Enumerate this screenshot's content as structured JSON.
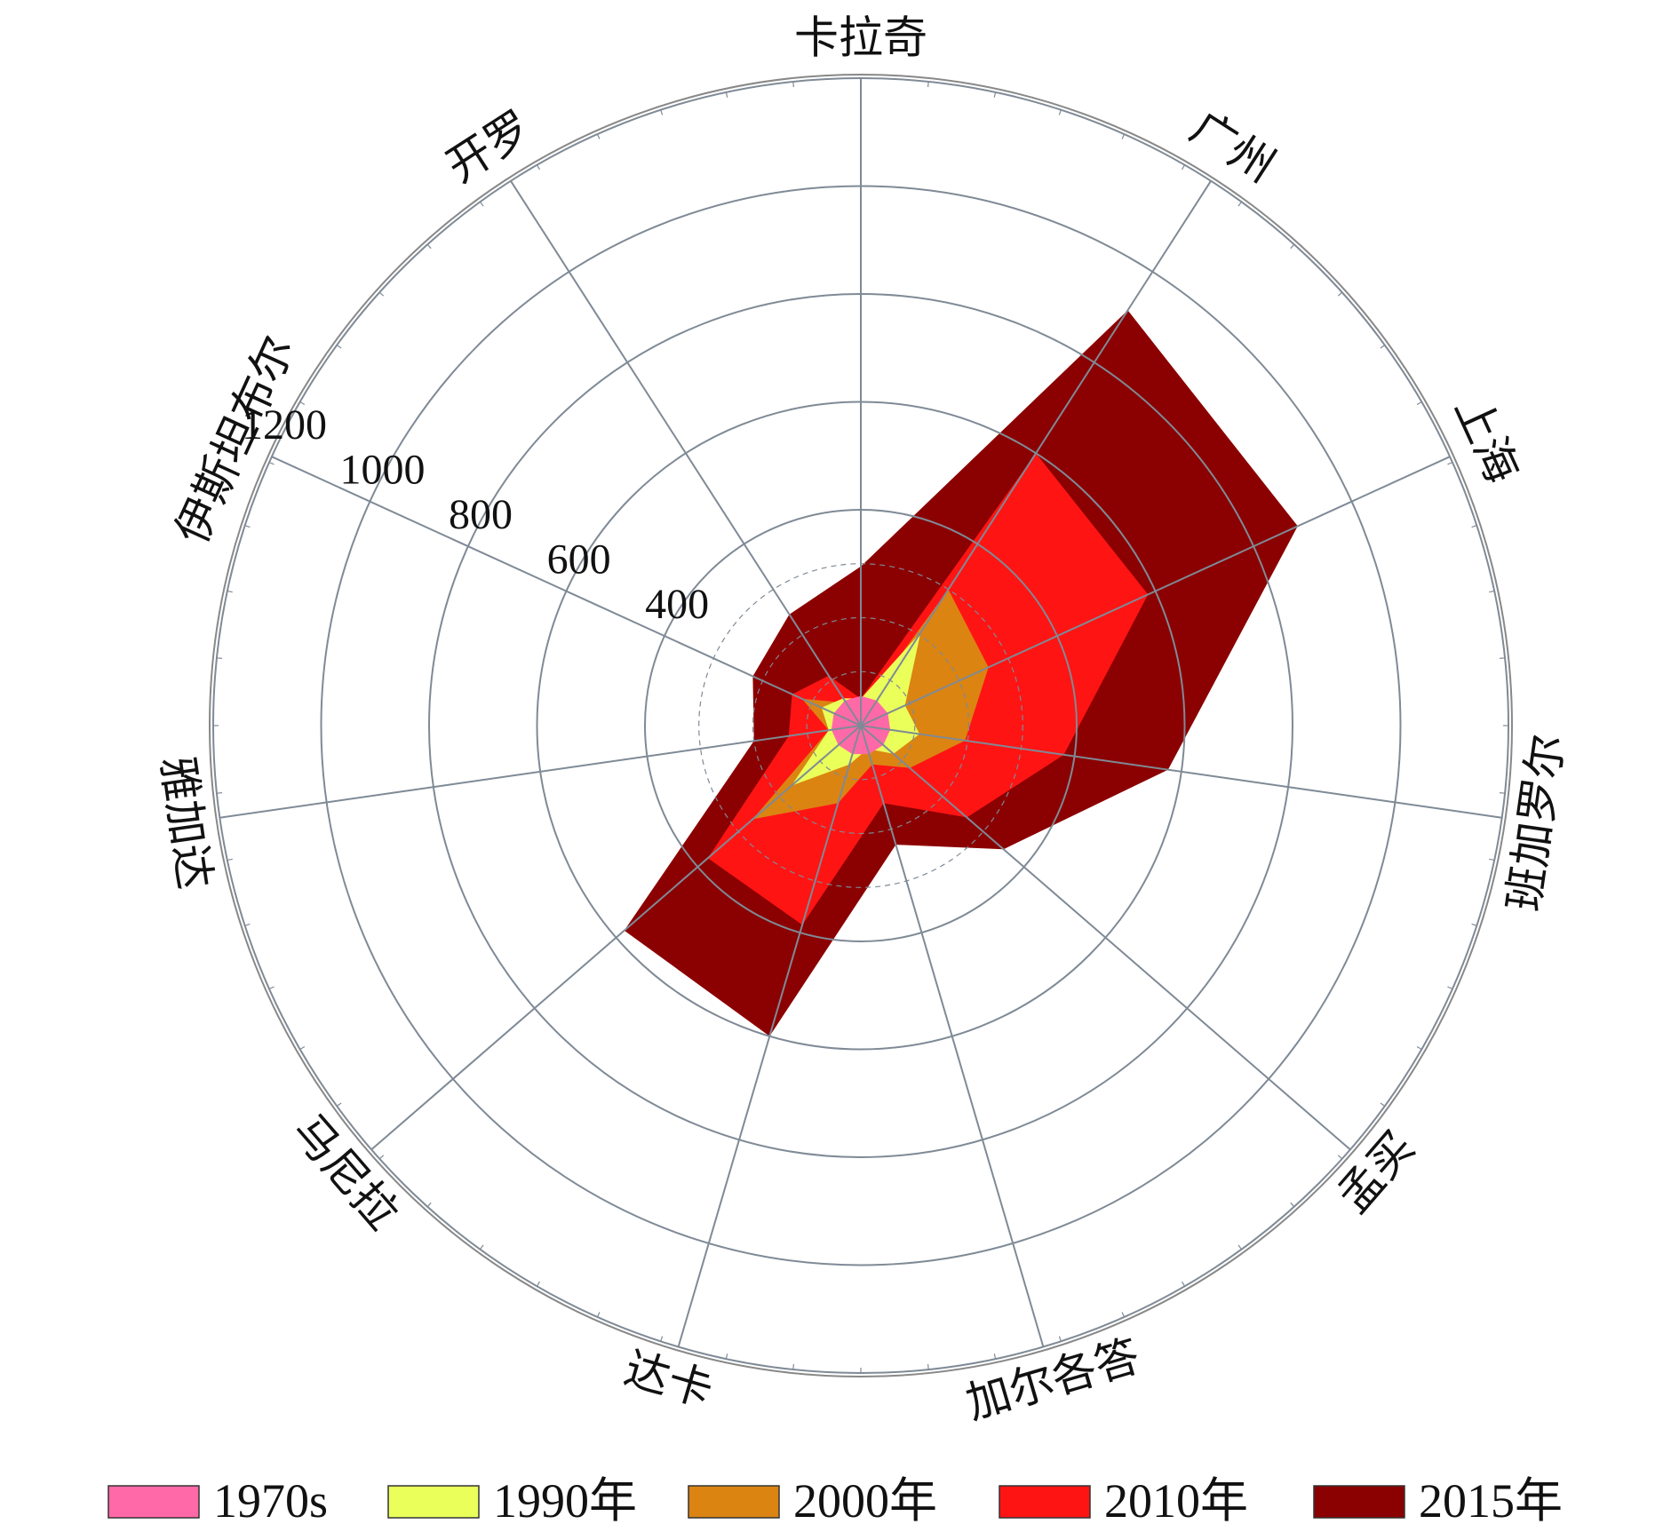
{
  "chart_data": {
    "type": "radar",
    "categories": [
      "卡拉奇",
      "广州",
      "上海",
      "班加罗尔",
      "孟买",
      "加尔各答",
      "达卡",
      "马尼拉",
      "雅加达",
      "伊斯坦布尔",
      "开罗"
    ],
    "rlim": [
      0,
      1200
    ],
    "rings": [
      100,
      200,
      300,
      400,
      600,
      800,
      1000,
      1200
    ],
    "tick_labels": [
      "400",
      "600",
      "800",
      "1000",
      "1200"
    ],
    "grid": true,
    "legend_position": "bottom",
    "series": [
      {
        "name": "2015年",
        "color": "#8b0000",
        "values": [
          295,
          915,
          890,
          575,
          350,
          230,
          600,
          580,
          200,
          220,
          245
        ]
      },
      {
        "name": "2010年",
        "color": "#ff1414",
        "values": [
          50,
          600,
          585,
          380,
          260,
          150,
          385,
          375,
          135,
          140,
          110
        ]
      },
      {
        "name": "2000年",
        "color": "#db8412",
        "values": [
          30,
          300,
          260,
          195,
          120,
          75,
          150,
          265,
          60,
          120,
          50
        ]
      },
      {
        "name": "1990年",
        "color": "#eaff5a",
        "values": [
          50,
          205,
          90,
          110,
          80,
          45,
          75,
          170,
          60,
          80,
          60
        ]
      },
      {
        "name": "1970s",
        "color": "#ff69a8",
        "values": [
          55,
          55,
          55,
          55,
          55,
          55,
          55,
          55,
          55,
          55,
          55
        ]
      }
    ],
    "legend": [
      "1970s",
      "1990年",
      "2000年",
      "2010年",
      "2015年"
    ]
  },
  "colors": {
    "grid": "#7f8a96",
    "outer_ring": "#888888"
  }
}
